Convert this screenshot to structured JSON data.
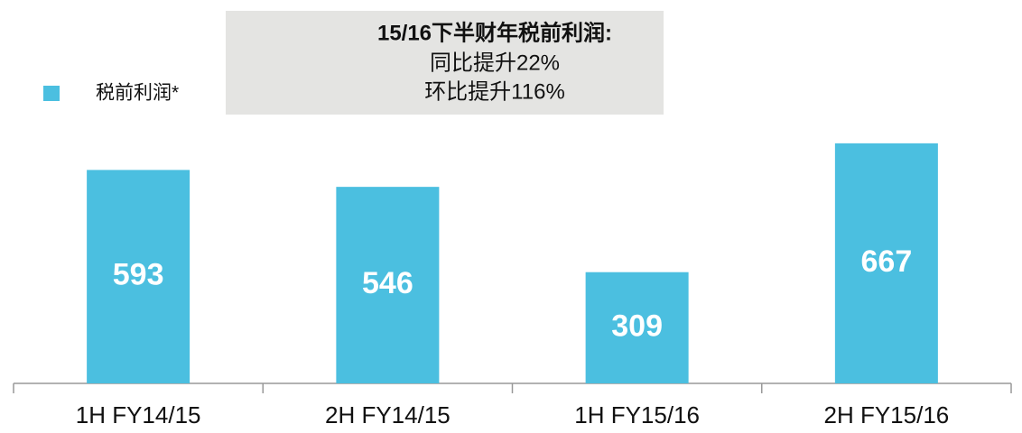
{
  "chart_data": {
    "type": "bar",
    "categories": [
      "1H FY14/15",
      "2H FY14/15",
      "1H FY15/16",
      "2H FY15/16"
    ],
    "series": [
      {
        "name": "税前利润*",
        "color": "#4bbfe0",
        "values": [
          593,
          546,
          309,
          667
        ]
      }
    ],
    "annotation": {
      "title": "15/16下半财年税前利润:",
      "lines": [
        "同比提升22%",
        "环比提升116%"
      ]
    }
  }
}
